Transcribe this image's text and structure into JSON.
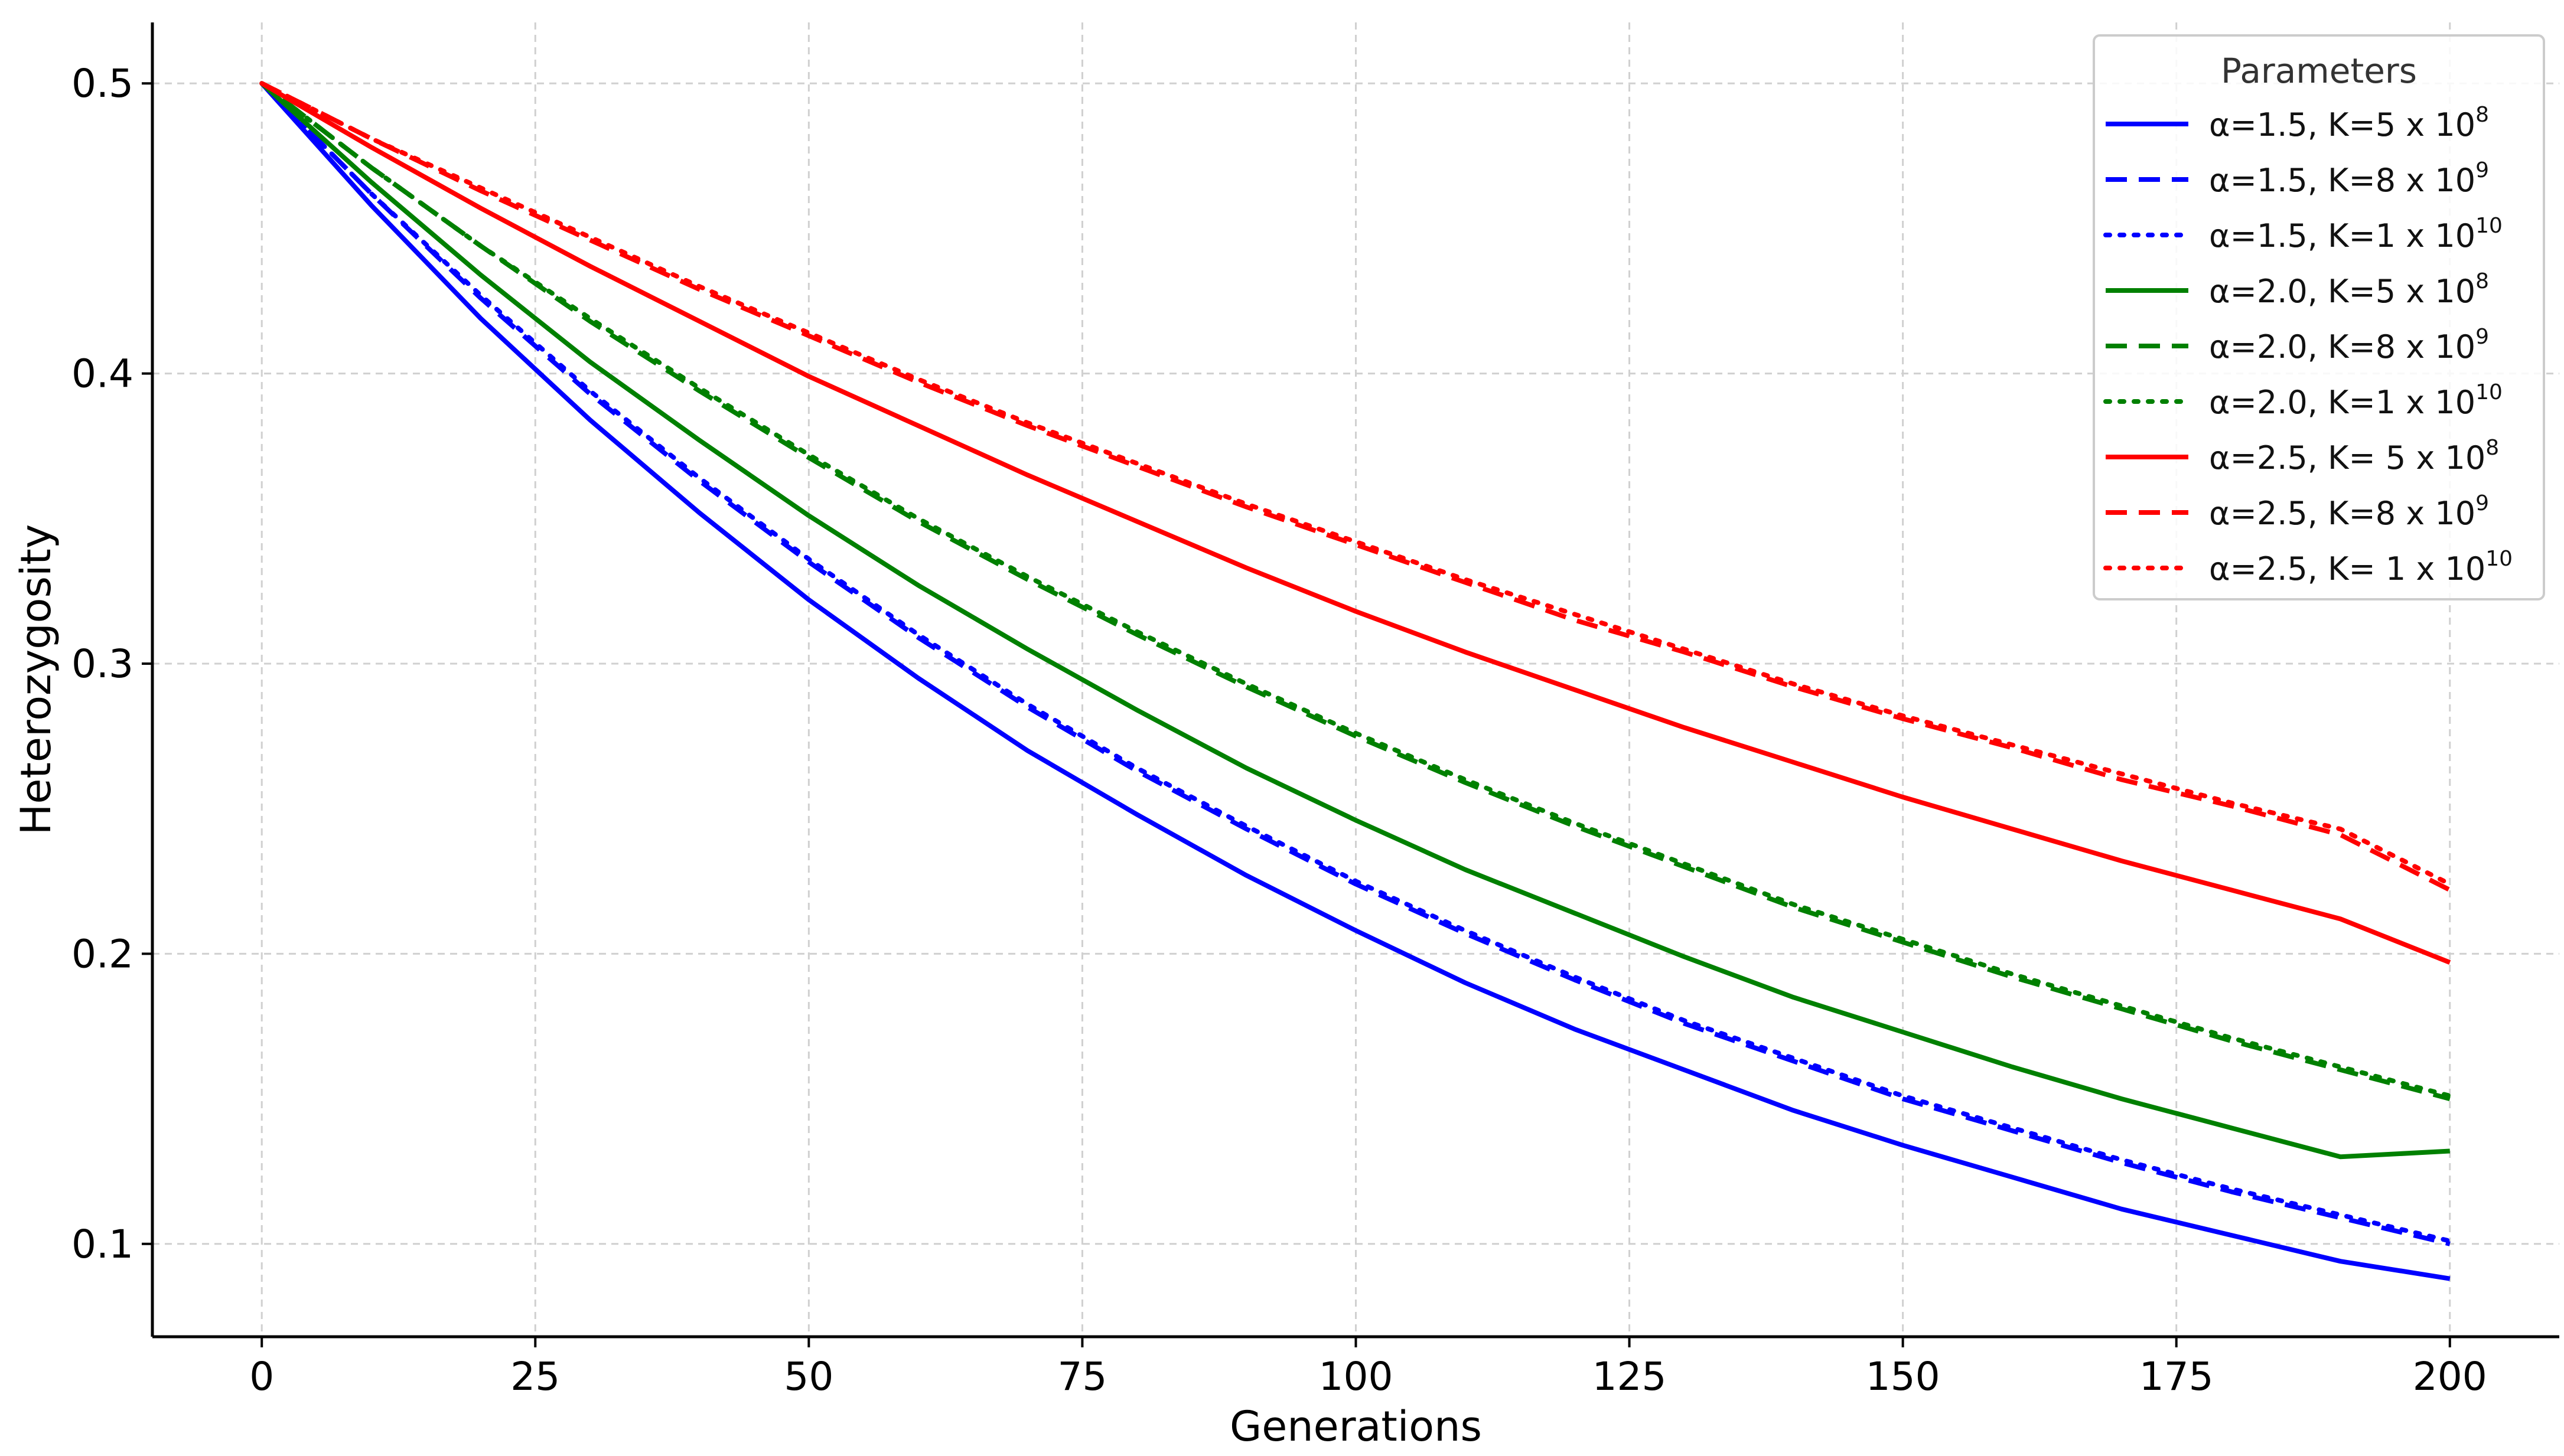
{
  "chart_data": {
    "type": "line",
    "title": "",
    "xlabel": "Generations",
    "ylabel": "Heterozygosity",
    "xlim": [
      -10,
      210
    ],
    "ylim": [
      0.068,
      0.521
    ],
    "x_ticks": [
      0,
      25,
      50,
      75,
      100,
      125,
      150,
      175,
      200
    ],
    "x_tick_labels": [
      "0",
      "25",
      "50",
      "75",
      "100",
      "125",
      "150",
      "175",
      "200"
    ],
    "y_ticks": [
      0.1,
      0.2,
      0.3,
      0.4,
      0.5
    ],
    "y_tick_labels": [
      "0.1",
      "0.2",
      "0.3",
      "0.4",
      "0.5"
    ],
    "grid": true,
    "legend": {
      "title": "Parameters",
      "placement": "top-right"
    },
    "x": [
      0,
      10,
      20,
      30,
      40,
      50,
      60,
      70,
      80,
      90,
      100,
      110,
      120,
      130,
      140,
      150,
      160,
      170,
      180,
      190,
      200
    ],
    "series": [
      {
        "name": "α=1.5, K=5 x 10^8",
        "label_main": "α=1.5, K=5 x 10",
        "label_exp": "8",
        "color": "#0000ff",
        "linestyle": "solid",
        "values": [
          0.5,
          0.458,
          0.419,
          0.384,
          0.352,
          0.322,
          0.295,
          0.27,
          0.248,
          0.227,
          0.208,
          0.19,
          0.174,
          0.16,
          0.146,
          0.134,
          0.123,
          0.112,
          0.103,
          0.094,
          0.088
        ]
      },
      {
        "name": "α=1.5, K=8 x 10^9",
        "label_main": "α=1.5, K=8 x 10",
        "label_exp": "9",
        "color": "#0000ff",
        "linestyle": "dashed",
        "values": [
          0.5,
          0.462,
          0.426,
          0.393,
          0.363,
          0.335,
          0.309,
          0.285,
          0.263,
          0.243,
          0.224,
          0.207,
          0.191,
          0.176,
          0.163,
          0.15,
          0.139,
          0.128,
          0.118,
          0.109,
          0.1
        ]
      },
      {
        "name": "α=1.5, K=1 x 10^10",
        "label_main": "α=1.5, K=1 x 10",
        "label_exp": "10",
        "color": "#0000ff",
        "linestyle": "dotted",
        "values": [
          0.5,
          0.462,
          0.427,
          0.394,
          0.364,
          0.336,
          0.31,
          0.286,
          0.264,
          0.244,
          0.225,
          0.208,
          0.192,
          0.177,
          0.164,
          0.151,
          0.14,
          0.129,
          0.119,
          0.11,
          0.101
        ]
      },
      {
        "name": "α=2.0, K=5 x 10^8",
        "label_main": "α=2.0, K=5 x 10",
        "label_exp": "8",
        "color": "#008000",
        "linestyle": "solid",
        "values": [
          0.5,
          0.466,
          0.434,
          0.404,
          0.377,
          0.351,
          0.327,
          0.305,
          0.284,
          0.264,
          0.246,
          0.229,
          0.214,
          0.199,
          0.185,
          0.173,
          0.161,
          0.15,
          0.14,
          0.13,
          0.132
        ]
      },
      {
        "name": "α=2.0, K=8 x 10^9",
        "label_main": "α=2.0, K=8 x 10",
        "label_exp": "9",
        "color": "#008000",
        "linestyle": "dashed",
        "values": [
          0.5,
          0.471,
          0.444,
          0.418,
          0.394,
          0.371,
          0.349,
          0.329,
          0.31,
          0.292,
          0.275,
          0.259,
          0.244,
          0.23,
          0.216,
          0.204,
          0.192,
          0.181,
          0.17,
          0.16,
          0.15
        ]
      },
      {
        "name": "α=2.0, K=1 x 10^10",
        "label_main": "α=2.0, K=1 x 10",
        "label_exp": "10",
        "color": "#008000",
        "linestyle": "dotted",
        "values": [
          0.5,
          0.471,
          0.444,
          0.419,
          0.395,
          0.372,
          0.35,
          0.33,
          0.311,
          0.293,
          0.276,
          0.26,
          0.245,
          0.231,
          0.217,
          0.205,
          0.193,
          0.182,
          0.171,
          0.161,
          0.151
        ]
      },
      {
        "name": "α=2.5, K= 5 x 10^8",
        "label_main": "α=2.5, K= 5 x 10",
        "label_exp": "8",
        "color": "#ff0000",
        "linestyle": "solid",
        "values": [
          0.5,
          0.478,
          0.457,
          0.437,
          0.418,
          0.399,
          0.382,
          0.365,
          0.349,
          0.333,
          0.318,
          0.304,
          0.291,
          0.278,
          0.266,
          0.254,
          0.243,
          0.232,
          0.222,
          0.212,
          0.197
        ]
      },
      {
        "name": "α=2.5, K=8 x 10^9",
        "label_main": "α=2.5, K=8 x 10",
        "label_exp": "9",
        "color": "#ff0000",
        "linestyle": "dashed",
        "values": [
          0.5,
          0.481,
          0.463,
          0.446,
          0.429,
          0.413,
          0.397,
          0.382,
          0.368,
          0.354,
          0.341,
          0.328,
          0.315,
          0.304,
          0.292,
          0.281,
          0.271,
          0.26,
          0.251,
          0.241,
          0.222
        ]
      },
      {
        "name": "α=2.5, K= 1 x 10^10",
        "label_main": "α=2.5, K= 1 x 10",
        "label_exp": "10",
        "color": "#ff0000",
        "linestyle": "dotted",
        "values": [
          0.5,
          0.481,
          0.464,
          0.447,
          0.43,
          0.414,
          0.398,
          0.383,
          0.369,
          0.355,
          0.342,
          0.329,
          0.317,
          0.305,
          0.293,
          0.282,
          0.272,
          0.262,
          0.252,
          0.243,
          0.224
        ]
      }
    ]
  }
}
